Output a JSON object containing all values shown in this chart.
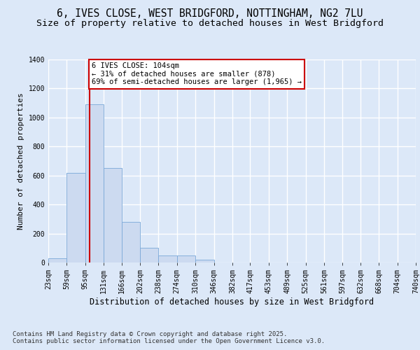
{
  "title_line1": "6, IVES CLOSE, WEST BRIDGFORD, NOTTINGHAM, NG2 7LU",
  "title_line2": "Size of property relative to detached houses in West Bridgford",
  "xlabel": "Distribution of detached houses by size in West Bridgford",
  "ylabel": "Number of detached properties",
  "bin_labels": [
    "23sqm",
    "59sqm",
    "95sqm",
    "131sqm",
    "166sqm",
    "202sqm",
    "238sqm",
    "274sqm",
    "310sqm",
    "346sqm",
    "382sqm",
    "417sqm",
    "453sqm",
    "489sqm",
    "525sqm",
    "561sqm",
    "597sqm",
    "632sqm",
    "668sqm",
    "704sqm",
    "740sqm"
  ],
  "bar_heights": [
    30,
    620,
    1090,
    650,
    280,
    100,
    50,
    50,
    20,
    0,
    0,
    0,
    0,
    0,
    0,
    0,
    0,
    0,
    0,
    0
  ],
  "bin_edges": [
    23,
    59,
    95,
    131,
    166,
    202,
    238,
    274,
    310,
    346,
    382,
    417,
    453,
    489,
    525,
    561,
    597,
    632,
    668,
    704,
    740
  ],
  "bar_color": "#ccdaf0",
  "bar_edge_color": "#7aa8d8",
  "bg_color": "#dce8f8",
  "fig_bg_color": "#dce8f8",
  "grid_color": "#ffffff",
  "vline_x": 104,
  "vline_color": "#cc0000",
  "annotation_text": "6 IVES CLOSE: 104sqm\n← 31% of detached houses are smaller (878)\n69% of semi-detached houses are larger (1,965) →",
  "annotation_box_color": "#cc0000",
  "ylim": [
    0,
    1400
  ],
  "yticks": [
    0,
    200,
    400,
    600,
    800,
    1000,
    1200,
    1400
  ],
  "footnote": "Contains HM Land Registry data © Crown copyright and database right 2025.\nContains public sector information licensed under the Open Government Licence v3.0.",
  "title_fontsize": 10.5,
  "subtitle_fontsize": 9.5,
  "xlabel_fontsize": 8.5,
  "ylabel_fontsize": 8,
  "tick_fontsize": 7,
  "annot_fontsize": 7.5,
  "footnote_fontsize": 6.5
}
